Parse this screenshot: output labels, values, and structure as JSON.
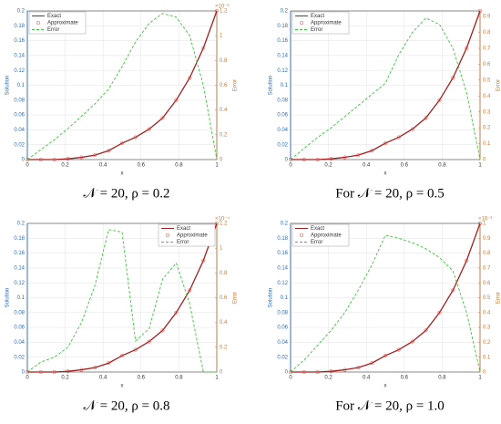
{
  "chart_data": [
    {
      "type": "line",
      "caption": "𝒩 = 20, ρ = 0.2",
      "x": [
        0,
        0.071,
        0.143,
        0.214,
        0.286,
        0.357,
        0.429,
        0.5,
        0.571,
        0.643,
        0.714,
        0.786,
        0.857,
        0.929,
        1
      ],
      "series": [
        {
          "name": "Exact",
          "color": "#a31f1f",
          "values": [
            0,
            0,
            0,
            0.001,
            0.003,
            0.006,
            0.012,
            0.022,
            0.03,
            0.041,
            0.056,
            0.08,
            0.11,
            0.15,
            0.2
          ]
        },
        {
          "name": "Approximate",
          "color": "#e0443a",
          "marker": "o",
          "values": [
            0,
            0,
            0,
            0.001,
            0.003,
            0.006,
            0.012,
            0.022,
            0.03,
            0.041,
            0.056,
            0.08,
            0.11,
            0.15,
            0.2
          ]
        },
        {
          "name": "Error",
          "color": "#3cc43c",
          "linestyle": "dashed",
          "axis": "y2",
          "values": [
            0,
            0.08,
            0.16,
            0.25,
            0.35,
            0.45,
            0.57,
            0.75,
            0.95,
            1.1,
            1.18,
            1.15,
            1.0,
            0.6,
            0
          ]
        }
      ],
      "xlim": [
        0,
        1
      ],
      "xticks": [
        0,
        0.2,
        0.4,
        0.6,
        0.8,
        1
      ],
      "ylim": [
        0,
        0.2
      ],
      "yticks": [
        0,
        0.02,
        0.04,
        0.06,
        0.08,
        0.1,
        0.12,
        0.14,
        0.16,
        0.18,
        0.2
      ],
      "y2lim": [
        0,
        1.2
      ],
      "y2ticks": [
        0,
        0.2,
        0.4,
        0.6,
        0.8,
        1,
        1.2
      ],
      "y2_scale": "×10⁻³",
      "xlabel": "x",
      "ylabel": "Solution",
      "y2label": "Error",
      "legend": "upper left",
      "grid": true
    },
    {
      "type": "line",
      "caption": "For 𝒩 = 20, ρ = 0.5",
      "x": [
        0,
        0.071,
        0.143,
        0.214,
        0.286,
        0.357,
        0.429,
        0.5,
        0.571,
        0.643,
        0.714,
        0.786,
        0.857,
        0.929,
        1
      ],
      "series": [
        {
          "name": "Exact",
          "color": "#a31f1f",
          "values": [
            0,
            0,
            0,
            0.001,
            0.003,
            0.006,
            0.012,
            0.022,
            0.03,
            0.041,
            0.056,
            0.08,
            0.11,
            0.15,
            0.2
          ]
        },
        {
          "name": "Approximate",
          "color": "#e0443a",
          "marker": "o",
          "values": [
            0,
            0,
            0,
            0.001,
            0.003,
            0.006,
            0.012,
            0.022,
            0.03,
            0.041,
            0.056,
            0.08,
            0.11,
            0.15,
            0.2
          ]
        },
        {
          "name": "Error",
          "color": "#3cc43c",
          "linestyle": "dashed",
          "axis": "y2",
          "values": [
            0,
            0.07,
            0.14,
            0.2,
            0.27,
            0.34,
            0.41,
            0.48,
            0.66,
            0.8,
            0.89,
            0.85,
            0.7,
            0.42,
            0
          ]
        }
      ],
      "xlim": [
        0,
        1
      ],
      "xticks": [
        0,
        0.2,
        0.4,
        0.6,
        0.8,
        1
      ],
      "ylim": [
        0,
        0.2
      ],
      "yticks": [
        0,
        0.02,
        0.04,
        0.06,
        0.08,
        0.1,
        0.12,
        0.14,
        0.16,
        0.18,
        0.2
      ],
      "y2lim": [
        0,
        0.935
      ],
      "y2ticks": [
        0,
        0.1,
        0.2,
        0.3,
        0.4,
        0.5,
        0.6,
        0.7,
        0.8,
        0.9
      ],
      "xlabel": "x",
      "ylabel": "Solution",
      "y2label": "Error",
      "legend": "upper left",
      "grid": true
    },
    {
      "type": "line",
      "caption": "𝒩 = 20, ρ = 0.8",
      "x": [
        0,
        0.071,
        0.143,
        0.214,
        0.286,
        0.357,
        0.429,
        0.5,
        0.571,
        0.643,
        0.714,
        0.786,
        0.857,
        0.929,
        1
      ],
      "series": [
        {
          "name": "Exact",
          "color": "#a31f1f",
          "values": [
            0,
            0,
            0,
            0.001,
            0.003,
            0.006,
            0.012,
            0.022,
            0.03,
            0.041,
            0.056,
            0.08,
            0.11,
            0.15,
            0.2
          ]
        },
        {
          "name": "Approximate",
          "color": "#e0443a",
          "marker": "o",
          "values": [
            0,
            0,
            0,
            0.001,
            0.003,
            0.006,
            0.012,
            0.022,
            0.03,
            0.041,
            0.056,
            0.08,
            0.11,
            0.15,
            0.2
          ]
        },
        {
          "name": "Error",
          "color": "#3cc43c",
          "linestyle": "dashed",
          "axis": "y2",
          "values": [
            0,
            0.08,
            0.12,
            0.2,
            0.4,
            0.7,
            1.15,
            1.13,
            0.25,
            0.35,
            0.75,
            0.88,
            0.55,
            0,
            0
          ]
        }
      ],
      "xlim": [
        0,
        1
      ],
      "xticks": [
        0,
        0.2,
        0.4,
        0.6,
        0.8,
        1
      ],
      "ylim": [
        0,
        0.2
      ],
      "yticks": [
        0,
        0.02,
        0.04,
        0.06,
        0.08,
        0.1,
        0.12,
        0.14,
        0.16,
        0.18,
        0.2
      ],
      "y2lim": [
        0,
        1.2
      ],
      "y2ticks": [
        0,
        0.2,
        0.4,
        0.6,
        0.8,
        1,
        1.2
      ],
      "y2_scale": "×10⁻⁴",
      "xlabel": "x",
      "ylabel": "Solution",
      "y2label": "Error",
      "legend": "upper right",
      "grid": true
    },
    {
      "type": "line",
      "caption": "For 𝒩 = 20, ρ = 1.0",
      "x": [
        0,
        0.071,
        0.143,
        0.214,
        0.286,
        0.357,
        0.429,
        0.5,
        0.571,
        0.643,
        0.714,
        0.786,
        0.857,
        0.929,
        1
      ],
      "series": [
        {
          "name": "Exact",
          "color": "#a31f1f",
          "values": [
            0,
            0,
            0,
            0.001,
            0.003,
            0.006,
            0.012,
            0.022,
            0.03,
            0.041,
            0.056,
            0.08,
            0.11,
            0.15,
            0.2
          ]
        },
        {
          "name": "Approximate",
          "color": "#e0443a",
          "marker": "o",
          "values": [
            0,
            0,
            0,
            0.001,
            0.003,
            0.006,
            0.012,
            0.022,
            0.03,
            0.041,
            0.056,
            0.08,
            0.11,
            0.15,
            0.2
          ]
        },
        {
          "name": "Error",
          "color": "#3cc43c",
          "linestyle": "dashed",
          "axis": "y2",
          "values": [
            0,
            0.08,
            0.18,
            0.28,
            0.4,
            0.55,
            0.72,
            0.92,
            0.9,
            0.87,
            0.83,
            0.77,
            0.68,
            0.4,
            0
          ]
        }
      ],
      "xlim": [
        0,
        1
      ],
      "xticks": [
        0,
        0.2,
        0.4,
        0.6,
        0.8,
        1
      ],
      "ylim": [
        0,
        0.2
      ],
      "yticks": [
        0,
        0.02,
        0.04,
        0.06,
        0.08,
        0.1,
        0.12,
        0.14,
        0.16,
        0.18,
        0.2
      ],
      "y2lim": [
        0,
        1
      ],
      "y2ticks": [
        0,
        0.1,
        0.2,
        0.3,
        0.4,
        0.5,
        0.6,
        0.7,
        0.8,
        0.9,
        1
      ],
      "y2_scale": "×10⁻³",
      "xlabel": "x",
      "ylabel": "Solution",
      "y2label": "Error",
      "legend": "upper left",
      "grid": true
    }
  ]
}
